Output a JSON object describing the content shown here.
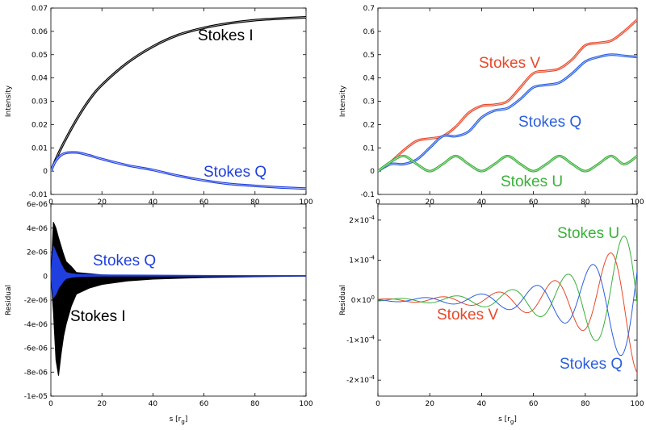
{
  "chart_data": [
    {
      "id": "top_left",
      "type": "line",
      "xlabel": "",
      "ylabel": "Intensity",
      "xlim": [
        0,
        100
      ],
      "ylim": [
        -0.01,
        0.07
      ],
      "x_ticks": [
        "0",
        "20",
        "40",
        "60",
        "80",
        "100"
      ],
      "y_ticks": [
        "-0.01",
        "0",
        "0.01",
        "0.02",
        "0.03",
        "0.04",
        "0.05",
        "0.06",
        "0.07"
      ],
      "series": [
        {
          "name": "Stokes I",
          "color": "#000000",
          "x": [
            0,
            2,
            5,
            10,
            15,
            20,
            30,
            40,
            50,
            60,
            70,
            80,
            90,
            100
          ],
          "y": [
            0,
            0.0052,
            0.012,
            0.022,
            0.0305,
            0.037,
            0.0465,
            0.0535,
            0.0585,
            0.0615,
            0.0635,
            0.0648,
            0.0655,
            0.066
          ]
        },
        {
          "name": "Stokes Q",
          "color": "#1f3fe0",
          "x": [
            0,
            2,
            5,
            10,
            15,
            20,
            30,
            40,
            50,
            60,
            70,
            80,
            90,
            100
          ],
          "y": [
            0,
            0.0045,
            0.0075,
            0.008,
            0.0068,
            0.0052,
            0.0025,
            0.0005,
            -0.002,
            -0.004,
            -0.0055,
            -0.0063,
            -0.007,
            -0.0075
          ]
        }
      ],
      "annotations": [
        "Stokes I",
        "Stokes Q"
      ]
    },
    {
      "id": "top_right",
      "type": "line",
      "xlabel": "",
      "ylabel": "Intensity",
      "xlim": [
        0,
        100
      ],
      "ylim": [
        -0.1,
        0.7
      ],
      "x_ticks": [
        "0",
        "20",
        "40",
        "60",
        "80",
        "100"
      ],
      "y_ticks": [
        "-0.1",
        "0",
        "0.1",
        "0.2",
        "0.3",
        "0.4",
        "0.5",
        "0.6",
        "0.7"
      ],
      "series": [
        {
          "name": "Stokes V",
          "color": "#e8482a",
          "x": [
            0,
            5,
            10,
            15,
            20,
            25,
            30,
            35,
            40,
            45,
            50,
            55,
            60,
            65,
            70,
            75,
            80,
            85,
            90,
            95,
            100
          ],
          "y": [
            0,
            0.04,
            0.09,
            0.13,
            0.14,
            0.15,
            0.19,
            0.25,
            0.28,
            0.285,
            0.3,
            0.36,
            0.42,
            0.43,
            0.44,
            0.48,
            0.54,
            0.55,
            0.56,
            0.6,
            0.65
          ]
        },
        {
          "name": "Stokes Q",
          "color": "#2a5fe0",
          "x": [
            0,
            5,
            10,
            15,
            20,
            25,
            30,
            35,
            40,
            45,
            50,
            55,
            60,
            65,
            70,
            75,
            80,
            85,
            90,
            95,
            100
          ],
          "y": [
            0,
            0.03,
            0.03,
            0.05,
            0.1,
            0.15,
            0.15,
            0.17,
            0.23,
            0.26,
            0.27,
            0.31,
            0.36,
            0.37,
            0.38,
            0.42,
            0.47,
            0.49,
            0.5,
            0.495,
            0.49
          ]
        },
        {
          "name": "Stokes U",
          "color": "#3ab03a",
          "x": [
            0,
            5,
            10,
            15,
            20,
            25,
            30,
            35,
            40,
            45,
            50,
            55,
            60,
            65,
            70,
            75,
            80,
            85,
            90,
            95,
            100
          ],
          "y": [
            0,
            0.04,
            0.065,
            0.03,
            0.0,
            0.03,
            0.065,
            0.03,
            0.0,
            0.03,
            0.065,
            0.03,
            0.0,
            0.03,
            0.065,
            0.03,
            0.0,
            0.03,
            0.065,
            0.03,
            0.065
          ]
        }
      ],
      "annotations": [
        "Stokes V",
        "Stokes Q",
        "Stokes U"
      ]
    },
    {
      "id": "bottom_left",
      "type": "line",
      "xlabel": "s [r",
      "xlabel_sub": "g",
      "xlabel_end": "]",
      "ylabel": "Residual",
      "xlim": [
        0,
        100
      ],
      "ylim": [
        -1e-05,
        6e-06
      ],
      "x_ticks": [
        "0",
        "20",
        "40",
        "60",
        "80",
        "100"
      ],
      "y_ticks": [
        "-1e-05",
        "-8e-06",
        "-6e-06",
        "-4e-06",
        "-2e-06",
        "0",
        "2e-06",
        "4e-06",
        "6e-06"
      ],
      "series": [
        {
          "name": "Stokes I",
          "color": "#000000",
          "x": [
            0,
            1,
            2,
            3,
            4,
            5,
            6,
            8,
            10,
            15,
            20,
            30,
            40,
            60,
            80,
            100
          ],
          "y_upper": [
            0,
            4.5e-06,
            4e-06,
            3.2e-06,
            2.5e-06,
            1.8e-06,
            1.2e-06,
            8e-07,
            3e-07,
            2e-07,
            1e-07,
            5e-08,
            3e-08,
            2e-08,
            1e-08,
            0
          ],
          "y_lower": [
            0,
            -3e-06,
            -7e-06,
            -8.3e-06,
            -6.5e-06,
            -5e-06,
            -4e-06,
            -2.5e-06,
            -1.5e-06,
            -1e-06,
            -7e-07,
            -4e-07,
            -2.5e-07,
            -1.2e-07,
            -5e-08,
            0
          ]
        },
        {
          "name": "Stokes Q",
          "color": "#1f3fe0",
          "x": [
            0,
            1,
            2,
            3,
            4,
            5,
            6,
            8,
            10,
            15,
            20,
            40,
            60,
            80,
            100
          ],
          "y_upper": [
            0,
            2.5e-06,
            2e-06,
            1.5e-06,
            1e-06,
            6e-07,
            3e-07,
            2e-07,
            1.5e-07,
            1.2e-07,
            1e-07,
            8e-08,
            6e-08,
            5e-08,
            5e-08
          ],
          "y_lower": [
            0,
            -1.8e-06,
            -1.5e-06,
            -1e-06,
            -7e-07,
            -4e-07,
            -2e-07,
            -1e-07,
            -5e-08,
            -2e-08,
            0,
            0,
            0,
            0,
            0
          ]
        }
      ],
      "annotations": [
        "Stokes Q",
        "Stokes I"
      ]
    },
    {
      "id": "bottom_right",
      "type": "line",
      "xlabel": "s [r",
      "xlabel_sub": "g",
      "xlabel_end": "]",
      "ylabel": "Residual",
      "xlim": [
        0,
        100
      ],
      "ylim": [
        -0.00024,
        0.00024
      ],
      "y_ticks": [
        {
          "mant": "-2×10",
          "exp": "-4",
          "v": -0.0002
        },
        {
          "mant": "-1×10",
          "exp": "-4",
          "v": -0.0001
        },
        {
          "mant": "0×10",
          "exp": "0",
          "v": 0
        },
        {
          "mant": "1×10",
          "exp": "-4",
          "v": 0.0001
        },
        {
          "mant": "2×10",
          "exp": "-4",
          "v": 0.0002
        }
      ],
      "x_ticks": [
        "0",
        "20",
        "40",
        "60",
        "80",
        "100"
      ],
      "series": [
        {
          "name": "Stokes V",
          "color": "#e8482a",
          "amp0": 3e-06,
          "growth": 0.041,
          "period": 21.5,
          "phase": 0.6
        },
        {
          "name": "Stokes U",
          "color": "#3ab03a",
          "amp0": 3e-06,
          "growth": 0.042,
          "period": 21.5,
          "phase": -0.9
        },
        {
          "name": "Stokes Q",
          "color": "#2a5fe0",
          "amp0": 3e-06,
          "growth": 0.041,
          "period": 21.5,
          "phase": 2.6
        }
      ],
      "annotations": [
        "Stokes U",
        "Stokes V",
        "Stokes Q"
      ]
    }
  ],
  "colors": {
    "black": "#000000",
    "blue": "#1f3fe0",
    "blue_light": "#2a5fe0",
    "red": "#e8482a",
    "green": "#3ab03a"
  }
}
